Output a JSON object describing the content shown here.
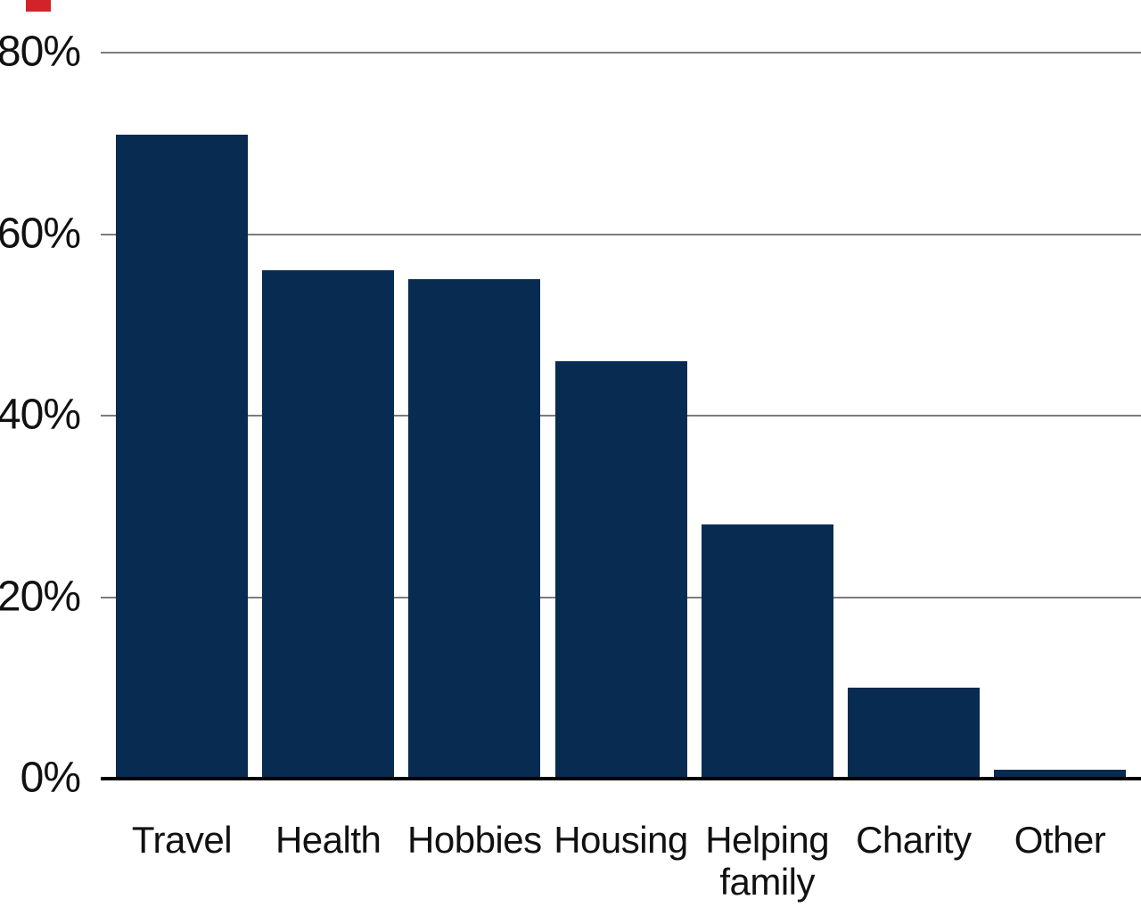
{
  "chart_data": {
    "type": "bar",
    "title": "",
    "xlabel": "",
    "ylabel": "",
    "unit": "%",
    "categories": [
      "Travel",
      "Health",
      "Hobbies",
      "Housing",
      "Helping\nfamily",
      "Charity",
      "Other"
    ],
    "values": [
      71,
      56,
      55,
      46,
      28,
      10,
      1
    ],
    "ylim": [
      0,
      80
    ],
    "y_ticks": [
      {
        "label": "80%",
        "value": 80
      },
      {
        "label": "60%",
        "value": 60
      },
      {
        "label": "40%",
        "value": 40
      },
      {
        "label": "20%",
        "value": 20
      },
      {
        "label": "0%",
        "value": 0
      }
    ],
    "grid": true,
    "legend": false,
    "colors": {
      "bar": "#082b52",
      "gridline": "#7c7c7c",
      "axis": "#000000",
      "text": "#111111",
      "background": "#ffffff",
      "corner_marker": "#d2232a"
    }
  }
}
